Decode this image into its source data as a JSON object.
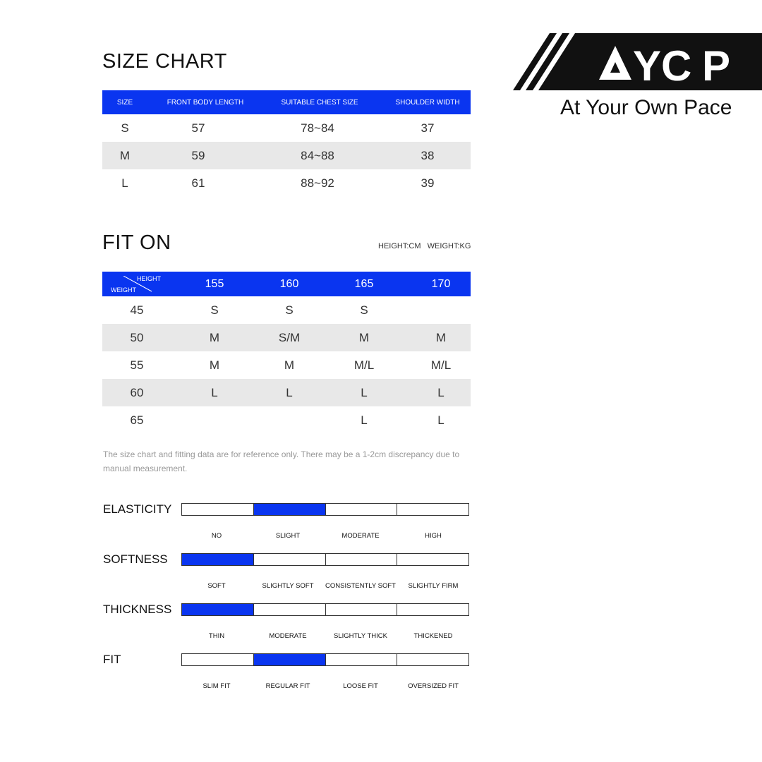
{
  "size_chart": {
    "title": "SIZE CHART",
    "headers": [
      "SIZE",
      "FRONT BODY LENGTH",
      "SUITABLE CHEST SIZE",
      "SHOULDER WIDTH"
    ],
    "rows": [
      [
        "S",
        "57",
        "78~84",
        "37"
      ],
      [
        "M",
        "59",
        "84~88",
        "38"
      ],
      [
        "L",
        "61",
        "88~92",
        "39"
      ]
    ]
  },
  "fit_on": {
    "title": "FIT ON",
    "units": "HEIGHT:CM   WEIGHT:KG",
    "corner_height": "HEIGHT",
    "corner_weight": "WEIGHT",
    "heights": [
      "155",
      "160",
      "165",
      "170"
    ],
    "rows": [
      {
        "weight": "45",
        "sizes": [
          "S",
          "S",
          "S",
          ""
        ]
      },
      {
        "weight": "50",
        "sizes": [
          "M",
          "S/M",
          "M",
          "M"
        ]
      },
      {
        "weight": "55",
        "sizes": [
          "M",
          "M",
          "M/L",
          "M/L"
        ]
      },
      {
        "weight": "60",
        "sizes": [
          "L",
          "L",
          "L",
          "L"
        ]
      },
      {
        "weight": "65",
        "sizes": [
          "",
          "",
          "L",
          "L"
        ]
      }
    ]
  },
  "note": "The size chart and fitting data are for reference only. There may be a 1-2cm discrepancy due to manual measurement.",
  "attributes": [
    {
      "name": "ELASTICITY",
      "options": [
        "NO",
        "SLIGHT",
        "MODERATE",
        "HIGH"
      ],
      "selected": 1
    },
    {
      "name": "SOFTNESS",
      "options": [
        "SOFT",
        "SLIGHTLY SOFT",
        "CONSISTENTLY SOFT",
        "SLIGHTLY FIRM"
      ],
      "selected": 0
    },
    {
      "name": "THICKNESS",
      "options": [
        "THIN",
        "MODERATE",
        "SLIGHTLY THICK",
        "THICKENED"
      ],
      "selected": 0
    },
    {
      "name": "FIT",
      "options": [
        "SLIM FIT",
        "REGULAR FIT",
        "LOOSE FIT",
        "OVERSIZED FIT"
      ],
      "selected": 1
    }
  ],
  "brand": {
    "logo_text": "AYCP",
    "tagline": "At Your Own Pace"
  },
  "colors": {
    "accent": "#0a35f0",
    "alt_row": "#e8e8e8"
  }
}
